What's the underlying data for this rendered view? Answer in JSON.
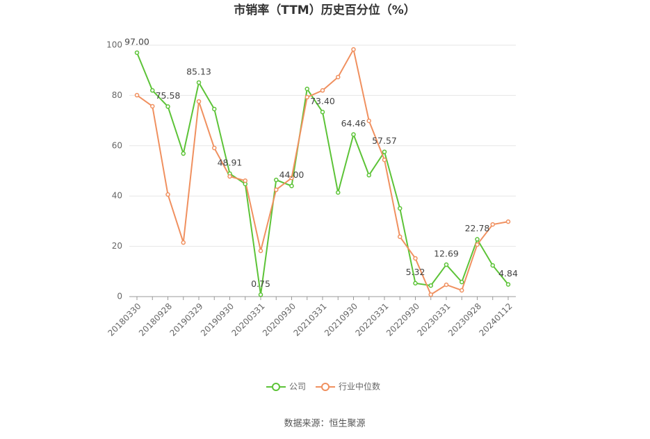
{
  "chart_data": {
    "type": "line",
    "title": "市销率（TTM）历史百分位（%）",
    "categories": [
      "20180330",
      null,
      "20180928",
      null,
      "20190329",
      null,
      "20190930",
      null,
      "20200331",
      null,
      "20200930",
      null,
      "20210331",
      null,
      "20210930",
      null,
      "20220331",
      null,
      "20220930",
      null,
      "20230331",
      null,
      "20230928",
      null,
      "20240112"
    ],
    "series": [
      {
        "name": "公司",
        "color": "#5cc337",
        "values": [
          97.0,
          82.0,
          75.58,
          56.9,
          85.13,
          74.6,
          48.91,
          44.8,
          0.75,
          46.4,
          44.0,
          82.6,
          73.4,
          41.4,
          64.46,
          48.3,
          57.57,
          35.1,
          5.32,
          4.4,
          12.69,
          5.8,
          22.78,
          12.4,
          4.84
        ],
        "value_labels": [
          "97.00",
          null,
          "75.58",
          null,
          "85.13",
          null,
          "48.91",
          null,
          "0.75",
          null,
          "44.00",
          null,
          "73.40",
          null,
          "64.46",
          null,
          "57.57",
          null,
          "5.32",
          null,
          "12.69",
          null,
          "22.78",
          null,
          "4.84"
        ]
      },
      {
        "name": "行业中位数",
        "color": "#f0905f",
        "values": [
          80.1,
          75.7,
          40.6,
          21.5,
          77.6,
          59.1,
          47.8,
          46.1,
          18.2,
          42.5,
          47.2,
          79.3,
          82.0,
          87.3,
          98.3,
          69.9,
          54.4,
          23.8,
          15.2,
          0.8,
          4.7,
          2.5,
          20.7,
          28.7,
          29.8
        ]
      }
    ],
    "ylim": [
      0,
      100
    ],
    "yticks": [
      0,
      20,
      40,
      60,
      80,
      100
    ],
    "grid": true,
    "legend": "bottom",
    "source": "数据来源：恒生聚源"
  }
}
